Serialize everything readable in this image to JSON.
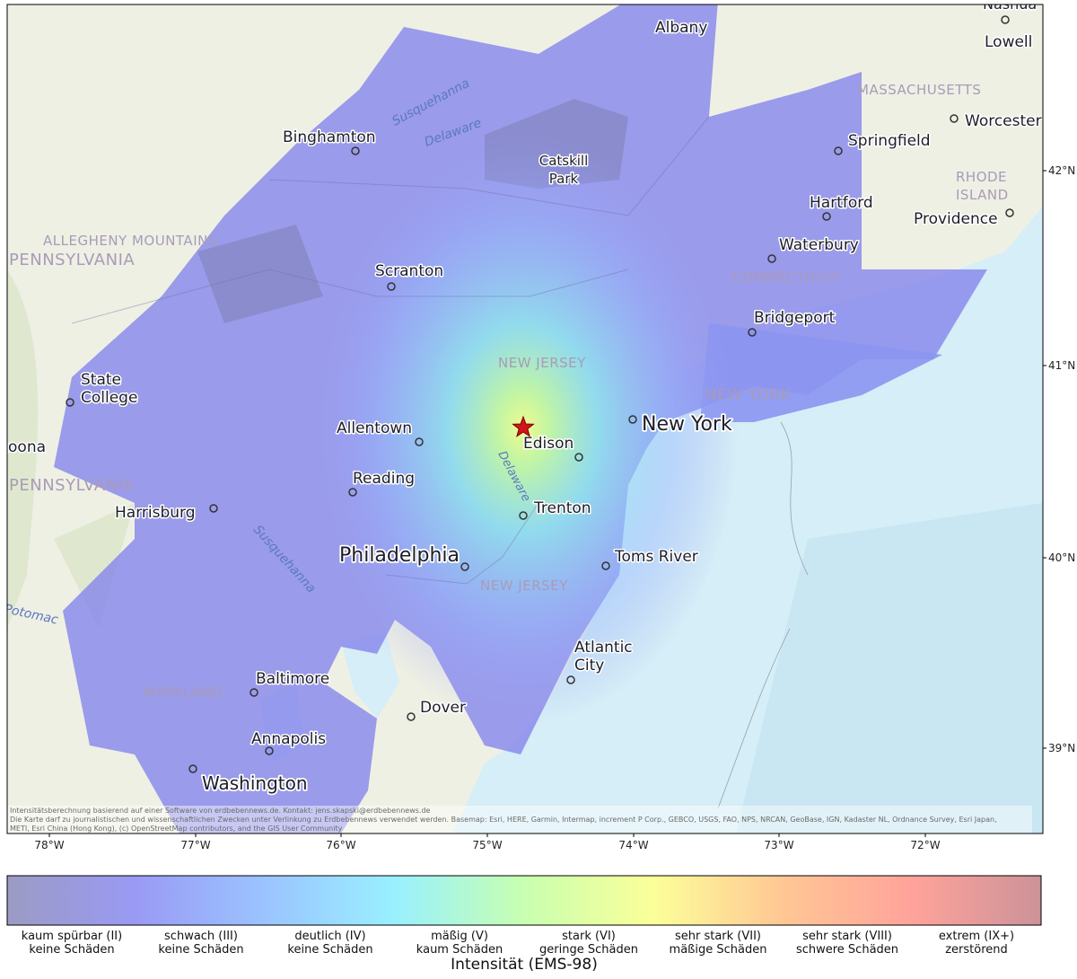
{
  "map": {
    "places": [
      [
        "Nashua"
      ],
      [
        "Lowell"
      ],
      [
        "Albany"
      ],
      [
        "MASSACHUSETTS"
      ],
      [
        "Worcester"
      ],
      [
        "Springfield"
      ],
      [
        "Binghamton"
      ],
      [
        "Susquehanna"
      ],
      [
        "Delaware"
      ],
      [
        "Catskill",
        "Park"
      ],
      [
        "RHODE",
        "ISLAND"
      ],
      [
        "Hartford"
      ],
      [
        "Providence"
      ],
      [
        "ALLEGHENY MOUNTAINS"
      ],
      [
        "Waterbury"
      ],
      [
        "PENNSYLVANIA"
      ],
      [
        "Scranton"
      ],
      [
        "CONNECTICUT"
      ],
      [
        "Bridgeport"
      ],
      [
        "NEW JERSEY"
      ],
      [
        "State",
        "College"
      ],
      [
        "NEW YORK"
      ],
      [
        "New York"
      ],
      [
        "Allentown"
      ],
      [
        "Edison"
      ],
      [
        "Altoona"
      ],
      [
        "PENNSYLVANIA"
      ],
      [
        "Reading"
      ],
      [
        "Delaware"
      ],
      [
        "Harrisburg"
      ],
      [
        "Trenton"
      ],
      [
        "Susquehanna"
      ],
      [
        "Philadelphia"
      ],
      [
        "Toms River"
      ],
      [
        "NEW JERSEY"
      ],
      [
        "Potomac"
      ],
      [
        "Atlantic",
        "City"
      ],
      [
        "Baltimore"
      ],
      [
        "MARYLAND"
      ],
      [
        "Dover"
      ],
      [
        "Annapolis"
      ],
      [
        "Washington"
      ]
    ],
    "lon_ticks": [
      "78°W",
      "77°W",
      "76°W",
      "75°W",
      "74°W",
      "73°W",
      "72°W"
    ],
    "lat_ticks": [
      "42°N",
      "41°N",
      "40°N",
      "39°N"
    ],
    "attribution": [
      "Intensitätsberechnung basierend auf einer Software von erdbebennews.de. Kontakt: jens.skapski@erdbebennews.de",
      "Die Karte darf zu journalistischen und wissenschaftlichen Zwecken unter Verlinkung zu Erdbebennews verwendet werden. Basemap: Esri, HERE, Garmin, Intermap, increment P Corp., GEBCO, USGS, FAO, NPS, NRCAN, GeoBase, IGN, Kadaster NL, Ordnance Survey, Esri Japan,",
      "METI, Esri China (Hong Kong), (c) OpenStreetMap contributors, and the GIS User Community"
    ]
  },
  "legend": {
    "title": "Intensität (EMS-98)",
    "colors": [
      "#9b9bc4",
      "#9a9af5",
      "#9bc4ff",
      "#99f0ff",
      "#c8ffb0",
      "#fbff99",
      "#ffc794",
      "#ffa39b",
      "#cc9298"
    ],
    "classes": [
      {
        "label": "kaum spürbar (II)",
        "description": "keine Schäden"
      },
      {
        "label": "schwach (III)",
        "description": "keine Schäden"
      },
      {
        "label": "deutlich (IV)",
        "description": "keine Schäden"
      },
      {
        "label": "mäßig (V)",
        "description": "kaum Schäden"
      },
      {
        "label": "stark (VI)",
        "description": "geringe Schäden"
      },
      {
        "label": "sehr stark (VII)",
        "description": "mäßige Schäden"
      },
      {
        "label": "sehr stark (VIII)",
        "description": "schwere Schäden"
      },
      {
        "label": "extrem (IX+)",
        "description": "zerstörend"
      }
    ]
  }
}
